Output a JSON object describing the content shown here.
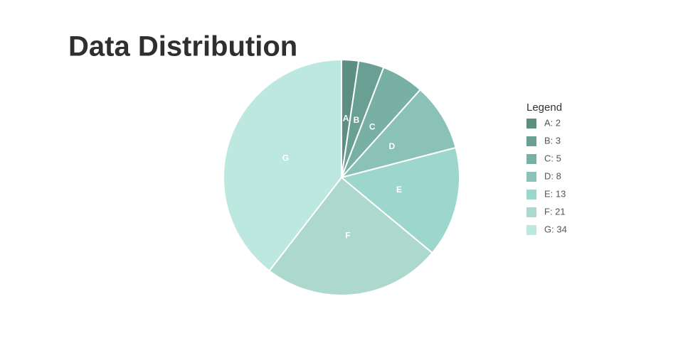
{
  "chart_data": {
    "type": "pie",
    "title": "Data Distribution",
    "legend_title": "Legend",
    "categories": [
      "A",
      "B",
      "C",
      "D",
      "E",
      "F",
      "G"
    ],
    "values": [
      2,
      3,
      5,
      8,
      13,
      21,
      34
    ],
    "value_labels": [
      "A: 2",
      "B: 3",
      "C: 5",
      "D: 8",
      "E: 13",
      "F: 21",
      "G: 34"
    ],
    "colors": [
      "#5c8f82",
      "#6a9f93",
      "#79b0a4",
      "#8ac2b7",
      "#9dd6cc",
      "#acd8cd",
      "#bde8df"
    ],
    "legend": "right"
  }
}
